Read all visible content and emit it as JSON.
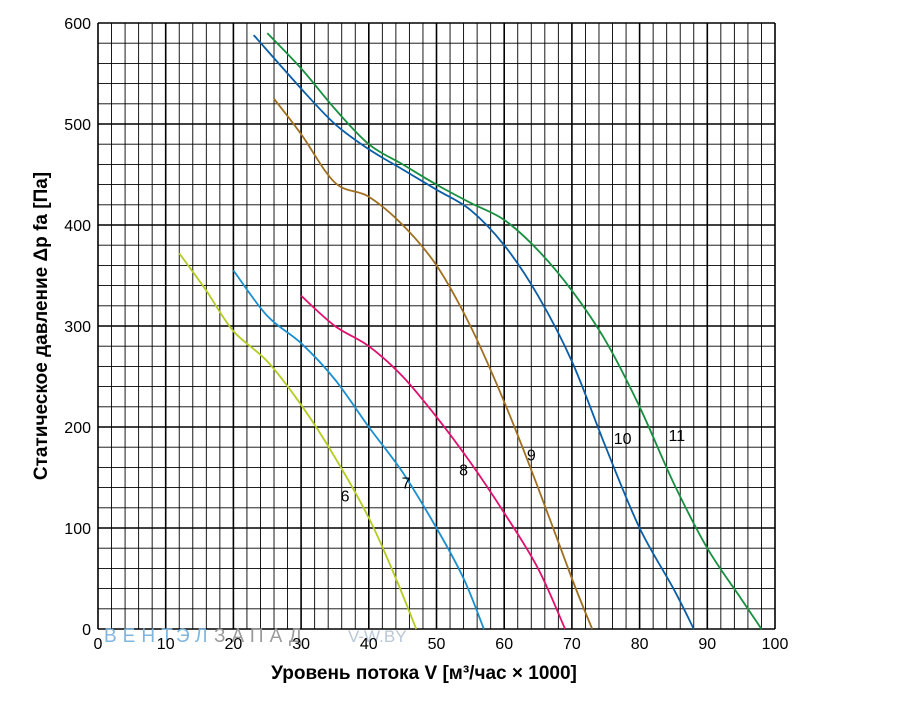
{
  "chart_data": {
    "type": "line",
    "title": "",
    "xlabel": "Уровень потока V [м³/час × 1000]",
    "ylabel": "Статическое давление Δp fa [Па]",
    "xlim": [
      0,
      100
    ],
    "ylim": [
      0,
      600
    ],
    "x_ticks": [
      "0",
      "10",
      "20",
      "30",
      "40",
      "50",
      "60",
      "70",
      "80",
      "90",
      "100"
    ],
    "y_ticks": [
      "0",
      "100",
      "200",
      "300",
      "400",
      "500",
      "600"
    ],
    "grid": true,
    "watermark": [
      "ВЕНТ",
      "ЭЛ",
      "ЗАПАД",
      "V-W.BY"
    ],
    "series": [
      {
        "name": "6",
        "color": "#b5cc22",
        "points": [
          [
            12,
            372
          ],
          [
            16,
            335
          ],
          [
            20,
            295
          ],
          [
            25,
            265
          ],
          [
            30,
            222
          ],
          [
            35,
            170
          ],
          [
            40,
            110
          ],
          [
            44,
            50
          ],
          [
            47,
            0
          ]
        ],
        "label_at": [
          36.5,
          132
        ]
      },
      {
        "name": "7",
        "color": "#1a8fd0",
        "points": [
          [
            20,
            355
          ],
          [
            25,
            310
          ],
          [
            30,
            283
          ],
          [
            35,
            247
          ],
          [
            40,
            200
          ],
          [
            45,
            155
          ],
          [
            50,
            100
          ],
          [
            54,
            50
          ],
          [
            57,
            0
          ]
        ],
        "label_at": [
          45.5,
          145
        ]
      },
      {
        "name": "8",
        "color": "#e01070",
        "points": [
          [
            30,
            330
          ],
          [
            35,
            300
          ],
          [
            40,
            280
          ],
          [
            45,
            250
          ],
          [
            50,
            210
          ],
          [
            55,
            165
          ],
          [
            60,
            115
          ],
          [
            65,
            60
          ],
          [
            69,
            0
          ]
        ],
        "label_at": [
          54,
          158
        ]
      },
      {
        "name": "9",
        "color": "#a07020",
        "points": [
          [
            26,
            525
          ],
          [
            30,
            490
          ],
          [
            35,
            442
          ],
          [
            40,
            428
          ],
          [
            45,
            400
          ],
          [
            50,
            360
          ],
          [
            55,
            300
          ],
          [
            60,
            225
          ],
          [
            65,
            140
          ],
          [
            70,
            50
          ],
          [
            73,
            0
          ]
        ],
        "label_at": [
          64,
          173
        ]
      },
      {
        "name": "10",
        "color": "#0a5ea8",
        "points": [
          [
            23,
            588
          ],
          [
            30,
            535
          ],
          [
            35,
            500
          ],
          [
            40,
            475
          ],
          [
            45,
            455
          ],
          [
            50,
            435
          ],
          [
            55,
            415
          ],
          [
            60,
            380
          ],
          [
            65,
            330
          ],
          [
            70,
            265
          ],
          [
            75,
            180
          ],
          [
            80,
            100
          ],
          [
            85,
            40
          ],
          [
            88,
            0
          ]
        ],
        "label_at": [
          77.5,
          189
        ]
      },
      {
        "name": "11",
        "color": "#179040",
        "points": [
          [
            25,
            590
          ],
          [
            30,
            555
          ],
          [
            35,
            515
          ],
          [
            40,
            480
          ],
          [
            45,
            460
          ],
          [
            50,
            440
          ],
          [
            55,
            422
          ],
          [
            60,
            405
          ],
          [
            65,
            375
          ],
          [
            70,
            335
          ],
          [
            75,
            285
          ],
          [
            80,
            220
          ],
          [
            85,
            145
          ],
          [
            90,
            80
          ],
          [
            95,
            30
          ],
          [
            98,
            0
          ]
        ],
        "label_at": [
          85.5,
          192
        ]
      }
    ]
  }
}
